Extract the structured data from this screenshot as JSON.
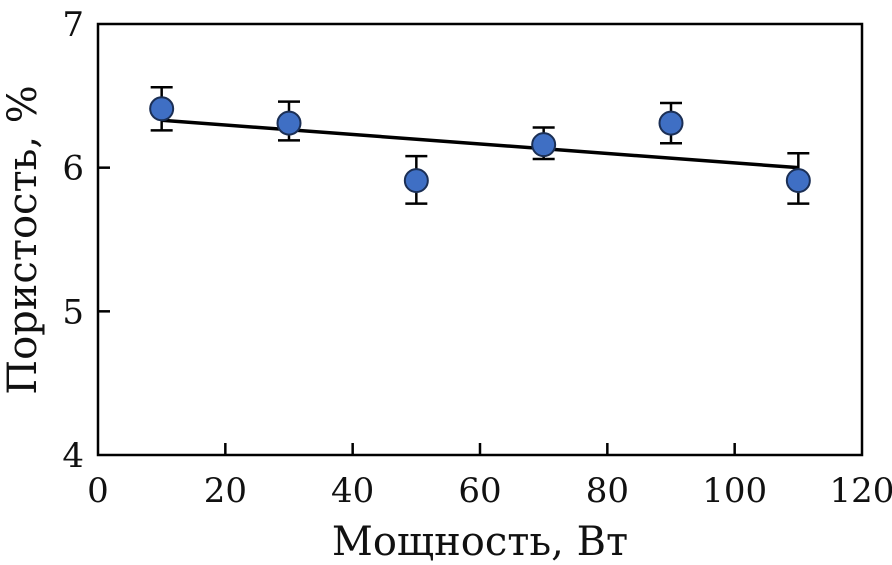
{
  "chart_data": {
    "type": "scatter",
    "xlabel": "Мощность, Вт",
    "ylabel": "Пористость, %",
    "xlim": [
      0,
      120
    ],
    "ylim": [
      4,
      7
    ],
    "x_ticks": [
      0,
      20,
      40,
      60,
      80,
      100,
      120
    ],
    "y_ticks": [
      4,
      5,
      6,
      7
    ],
    "x_tick_labels": [
      "0",
      "20",
      "40",
      "60",
      "80",
      "100",
      "120"
    ],
    "y_tick_labels": [
      "4",
      "5",
      "6",
      "7"
    ],
    "grid": false,
    "series": [
      {
        "x": [
          10,
          30,
          50,
          70,
          90,
          110
        ],
        "y": [
          6.41,
          6.31,
          5.91,
          6.16,
          6.31,
          5.91
        ],
        "y_err_low": [
          0.15,
          0.12,
          0.16,
          0.1,
          0.14,
          0.16
        ],
        "y_err_high": [
          0.15,
          0.15,
          0.17,
          0.12,
          0.14,
          0.19
        ],
        "marker_color": "#3f6fc4",
        "marker_edge": "#1b2f55"
      }
    ],
    "trend_line": {
      "x": [
        10,
        110
      ],
      "y": [
        6.33,
        6.0
      ],
      "color": "#000000"
    }
  }
}
